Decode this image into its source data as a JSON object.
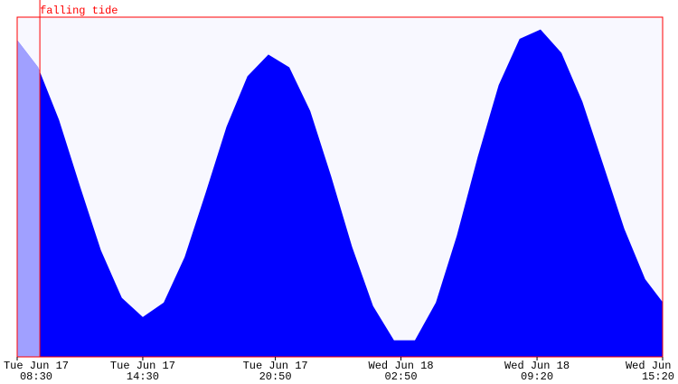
{
  "chart_data": {
    "type": "area",
    "x": [
      "Tue Jun 17 08:30",
      "Tue Jun 17 09:30",
      "Tue Jun 17 10:30",
      "Tue Jun 17 11:30",
      "Tue Jun 17 12:30",
      "Tue Jun 17 13:30",
      "Tue Jun 17 14:30",
      "Tue Jun 17 15:30",
      "Tue Jun 17 16:30",
      "Tue Jun 17 17:30",
      "Tue Jun 17 18:30",
      "Tue Jun 17 19:30",
      "Tue Jun 17 20:30",
      "Tue Jun 17 21:30",
      "Tue Jun 17 22:30",
      "Tue Jun 17 23:30",
      "Wed Jun 18 00:30",
      "Wed Jun 18 01:30",
      "Wed Jun 18 02:30",
      "Wed Jun 18 03:30",
      "Wed Jun 18 04:30",
      "Wed Jun 18 05:30",
      "Wed Jun 18 06:30",
      "Wed Jun 18 07:30",
      "Wed Jun 18 08:30",
      "Wed Jun 18 09:30",
      "Wed Jun 18 10:30",
      "Wed Jun 18 11:30",
      "Wed Jun 18 12:30",
      "Wed Jun 18 13:30",
      "Wed Jun 18 14:30",
      "Wed Jun 18 15:20"
    ],
    "values": [
      6.46,
      5.82,
      4.58,
      3.02,
      1.51,
      0.39,
      -0.06,
      0.28,
      1.35,
      2.86,
      4.42,
      5.61,
      6.12,
      5.82,
      4.79,
      3.25,
      1.59,
      0.2,
      -0.61,
      -0.61,
      0.28,
      1.85,
      3.71,
      5.4,
      6.49,
      6.71,
      6.16,
      5.01,
      3.52,
      2.02,
      0.83,
      0.29
    ],
    "color": "#0000ff",
    "past_color": "#a0a0ff",
    "background": "#f8f8ff",
    "marker_color": "#ff0000",
    "ylim": [
      -1,
      7
    ],
    "xlim": [
      "Tue Jun 17 08:30",
      "Wed Jun 18 15:20"
    ],
    "xticks": [
      {
        "value": "Tue Jun 17 08:30",
        "label": [
          "Tue Jun 17",
          "08:30"
        ]
      },
      {
        "value": "Tue Jun 17 14:30",
        "label": [
          "Tue Jun 17",
          "14:30"
        ]
      },
      {
        "value": "Tue Jun 17 20:50",
        "label": [
          "Tue Jun 17",
          "20:50"
        ]
      },
      {
        "value": "Wed Jun 18 02:50",
        "label": [
          "Wed Jun 18",
          "02:50"
        ]
      },
      {
        "value": "Wed Jun 18 09:20",
        "label": [
          "Wed Jun 18",
          "09:20"
        ]
      },
      {
        "value": "Wed Jun 18 15:20",
        "label": [
          "Wed Jun 18",
          "15:20"
        ]
      }
    ],
    "now": {
      "x": "Tue Jun 17 09:35",
      "label": "falling tide"
    }
  }
}
